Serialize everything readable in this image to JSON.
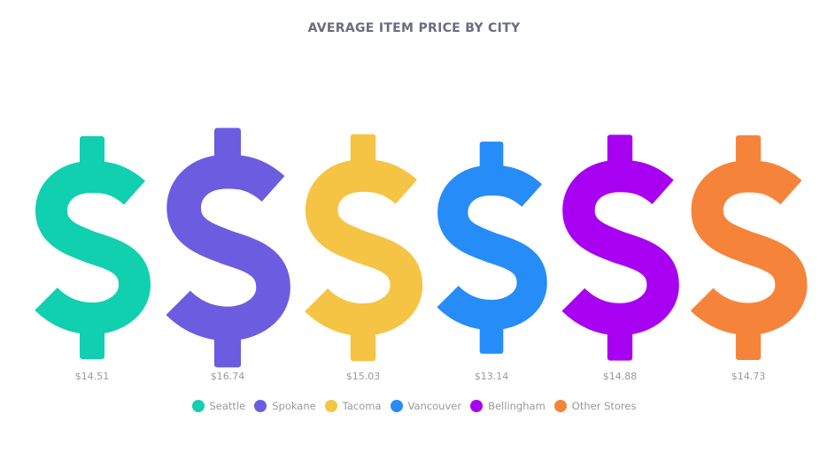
{
  "chart_data": {
    "type": "pictorial-bar",
    "title": "AVERAGE ITEM PRICE BY CITY",
    "categories": [
      "Seattle",
      "Spokane",
      "Tacoma",
      "Vancouver",
      "Bellingham",
      "Other Stores"
    ],
    "values": [
      14.51,
      16.74,
      15.03,
      13.14,
      14.88,
      14.73
    ],
    "value_labels": [
      "$14.51",
      "$16.74",
      "$15.03",
      "$13.14",
      "$14.88",
      "$14.73"
    ],
    "colors": [
      "#10d0b0",
      "#6b5ce0",
      "#f5c445",
      "#268cf8",
      "#a800f0",
      "#f5843a"
    ],
    "icon": "dollar-sign-icon",
    "legend": "bottom"
  }
}
